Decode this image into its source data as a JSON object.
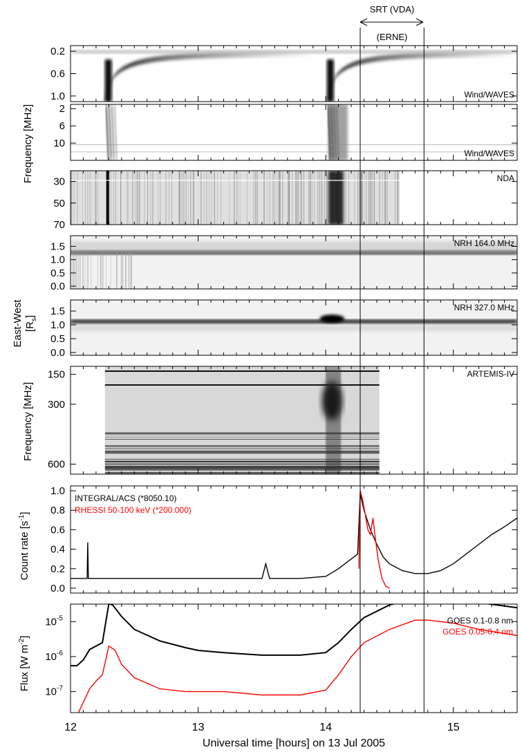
{
  "figure": {
    "top_annotations": {
      "srt_label": "SRT (VDA)",
      "erne_label": "(ERNE)"
    },
    "x_axis": {
      "label": "Universal time [hours] on 13 Jul 2005",
      "range": [
        12.0,
        15.5
      ],
      "ticks": [
        12,
        13,
        14,
        15
      ],
      "tick_labels": [
        "12",
        "13",
        "14",
        "15"
      ]
    },
    "marker_times": [
      14.27,
      14.77
    ],
    "srt_interval": [
      14.0,
      14.9
    ],
    "group_labels": {
      "frequency_mhz_khz": "Frequency [MHz]",
      "east_west": "East-West",
      "east_west_unit": "[R",
      "east_west_sub": "s",
      "east_west_close": "]",
      "frequency_mhz": "Frequency [MHz]",
      "count_rate": "Count rate [s",
      "count_rate_sup": "-1",
      "count_rate_close": "]",
      "flux": "Flux [W m",
      "flux_sup": "-2",
      "flux_close": "]"
    }
  },
  "chart_data": [
    {
      "type": "heatmap",
      "panel": "wind-waves-rad1",
      "label": "Wind/WAVES",
      "y_tick_labels": [
        "0.2",
        "0.6",
        "1.0"
      ],
      "y_tick_values": [
        0.2,
        0.6,
        1.0
      ],
      "ylim": [
        0.1,
        1.1
      ],
      "bursts": [
        {
          "onset": 12.28,
          "freq_start": 1.0
        },
        {
          "onset": 14.02,
          "freq_start": 1.0
        }
      ]
    },
    {
      "type": "heatmap",
      "panel": "wind-waves-rad2",
      "label": "Wind/WAVES",
      "y_tick_labels": [
        "2",
        "6",
        "10"
      ],
      "y_tick_values": [
        2,
        6,
        10
      ],
      "ylim": [
        1,
        14
      ],
      "bursts": [
        {
          "onset": 12.28
        },
        {
          "onset": 14.02
        }
      ]
    },
    {
      "type": "heatmap",
      "panel": "nda",
      "label": "NDA",
      "y_tick_labels": [
        "30",
        "50",
        "70"
      ],
      "y_tick_values": [
        30,
        50,
        70
      ],
      "ylim": [
        20,
        70
      ],
      "data_end": 14.58
    },
    {
      "type": "heatmap",
      "panel": "nrh-164",
      "label": "NRH 164.0 MHz",
      "y_tick_labels": [
        "1.5",
        "1.0",
        "0.5",
        "0.0"
      ],
      "y_tick_values": [
        1.5,
        1.0,
        0.5,
        0.0
      ],
      "ylim": [
        -0.1,
        1.9
      ]
    },
    {
      "type": "heatmap",
      "panel": "nrh-327",
      "label": "NRH 327.0 MHz",
      "y_tick_labels": [
        "1.5",
        "1.0",
        "0.5",
        "0.0"
      ],
      "y_tick_values": [
        1.5,
        1.0,
        0.5,
        0.0
      ],
      "ylim": [
        -0.1,
        1.9
      ]
    },
    {
      "type": "heatmap",
      "panel": "artemis",
      "label": "ARTEMIS-IV",
      "y_tick_labels": [
        "150",
        "300",
        "600"
      ],
      "y_tick_values": [
        150,
        300,
        600
      ],
      "ylim": [
        110,
        650
      ],
      "data_range": [
        12.27,
        14.42
      ]
    },
    {
      "type": "line",
      "panel": "count-rate",
      "ylim": [
        -0.05,
        1.05
      ],
      "y_tick_labels": [
        "0.0",
        "0.2",
        "0.4",
        "0.6",
        "0.8",
        "1.0"
      ],
      "y_tick_values": [
        0.0,
        0.2,
        0.4,
        0.6,
        0.8,
        1.0
      ],
      "series": [
        {
          "name": "INTEGRAL/ACS (*8050.10)",
          "color": "#000000",
          "x": [
            12.0,
            12.1,
            12.13,
            12.135,
            12.14,
            12.16,
            12.5,
            13.0,
            13.5,
            13.53,
            13.56,
            13.8,
            14.0,
            14.1,
            14.15,
            14.2,
            14.25,
            14.27,
            14.3,
            14.35,
            14.4,
            14.45,
            14.5,
            14.6,
            14.7,
            14.8,
            14.9,
            15.0,
            15.1,
            15.2,
            15.3,
            15.4,
            15.5
          ],
          "y": [
            0.1,
            0.1,
            0.1,
            0.47,
            0.1,
            0.1,
            0.1,
            0.1,
            0.1,
            0.25,
            0.1,
            0.1,
            0.12,
            0.2,
            0.25,
            0.3,
            0.35,
            0.97,
            0.8,
            0.6,
            0.45,
            0.32,
            0.25,
            0.18,
            0.15,
            0.15,
            0.18,
            0.25,
            0.35,
            0.45,
            0.55,
            0.63,
            0.72
          ]
        },
        {
          "name": "RHESSI 50-100 keV (*200.000)",
          "color": "#ff0000",
          "x": [
            14.26,
            14.27,
            14.29,
            14.31,
            14.33,
            14.35,
            14.37,
            14.39,
            14.41,
            14.44,
            14.47,
            14.5
          ],
          "y": [
            0.2,
            1.0,
            0.9,
            0.75,
            0.6,
            0.55,
            0.72,
            0.5,
            0.3,
            0.1,
            0.02,
            0.0
          ]
        }
      ]
    },
    {
      "type": "line",
      "panel": "goes",
      "ylim_log10": [
        -7.6,
        -4.5
      ],
      "y_tick_labels": [
        "10",
        "10",
        "10"
      ],
      "y_tick_sup": [
        "-5",
        "-6",
        "-7"
      ],
      "y_tick_values": [
        1e-05,
        1e-06,
        1e-07
      ],
      "series": [
        {
          "name": "GOES 0.1-0.8 nm",
          "color": "#000000",
          "x": [
            12.0,
            12.05,
            12.1,
            12.15,
            12.2,
            12.25,
            12.3,
            12.33,
            12.4,
            12.5,
            12.7,
            12.9,
            13.0,
            13.2,
            13.5,
            13.8,
            14.0,
            14.1,
            14.2,
            14.3,
            14.5,
            14.7,
            14.8,
            15.0,
            15.2,
            15.5
          ],
          "y": [
            5.5e-07,
            5.5e-07,
            8e-07,
            1.6e-06,
            2e-06,
            2.5e-06,
            3.2e-05,
            3e-05,
            1.4e-05,
            6e-06,
            2.8e-06,
            1.8e-06,
            1.5e-06,
            1.3e-06,
            1.1e-06,
            1.1e-06,
            1.3e-06,
            2.5e-06,
            6e-06,
            1.3e-05,
            3e-05,
            4.5e-05,
            5e-05,
            4.5e-05,
            3.5e-05,
            2.5e-05
          ]
        },
        {
          "name": "GOES 0.05-0.4 nm",
          "color": "#ff0000",
          "x": [
            12.0,
            12.05,
            12.1,
            12.15,
            12.2,
            12.25,
            12.3,
            12.35,
            12.4,
            12.5,
            12.7,
            12.9,
            13.2,
            13.5,
            13.8,
            14.0,
            14.1,
            14.2,
            14.3,
            14.5,
            14.7,
            14.8,
            15.0,
            15.2,
            15.5
          ],
          "y": [
            2.5e-08,
            2e-08,
            5e-08,
            1.2e-07,
            2e-07,
            3e-07,
            2e-06,
            1.5e-06,
            6e-07,
            2.5e-07,
            1.2e-07,
            1e-07,
            1e-07,
            8e-08,
            8e-08,
            1.1e-07,
            3e-07,
            1e-06,
            2.5e-06,
            6e-06,
            1.1e-05,
            1.1e-05,
            9e-06,
            6e-06,
            4e-06
          ]
        }
      ]
    }
  ]
}
